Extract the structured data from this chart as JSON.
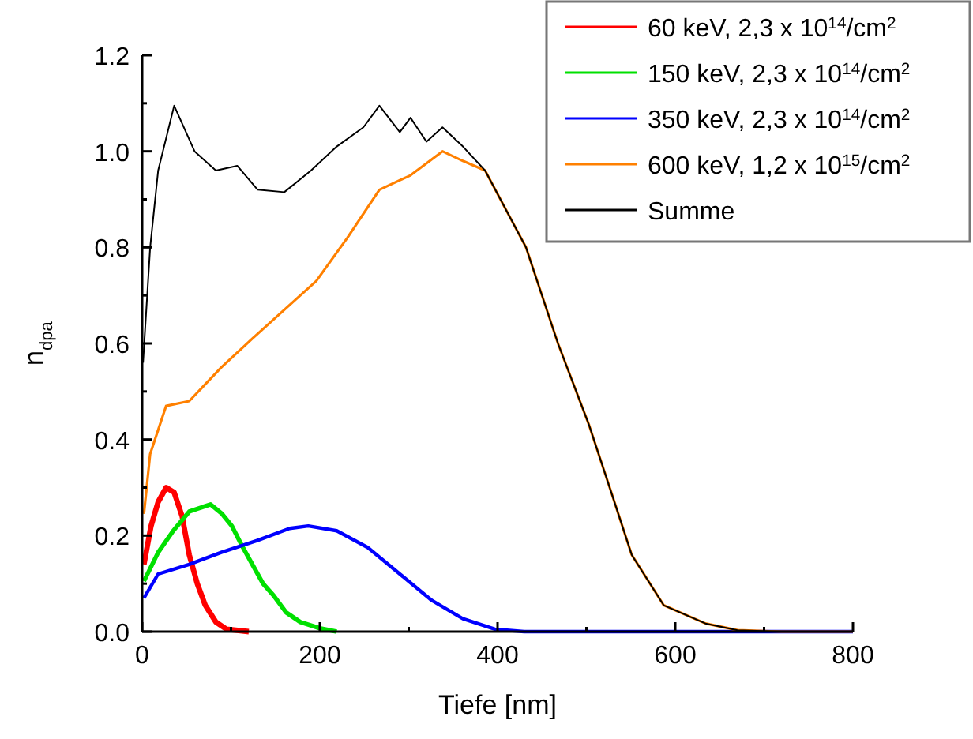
{
  "chart_data": {
    "type": "line",
    "xlabel": "Tiefe [nm]",
    "ylabel": "n$_{dpa}$",
    "xlim": [
      0,
      800
    ],
    "ylim": [
      0,
      1.2
    ],
    "xticks": [
      0,
      {
        "value": 100,
        "label": null
      },
      200,
      {
        "value": 300,
        "label": null
      },
      400,
      {
        "value": 500,
        "label": null
      },
      600,
      {
        "value": 700,
        "label": null
      },
      800
    ],
    "yticks": [
      {
        "value": 0,
        "label": "0.0"
      },
      {
        "value": 0.1,
        "label": null
      },
      0.2,
      {
        "value": 0.3,
        "label": null
      },
      0.4,
      {
        "value": 0.5,
        "label": null
      },
      0.6,
      {
        "value": 0.7,
        "label": null
      },
      0.8,
      {
        "value": 0.9,
        "label": null
      },
      {
        "value": 1,
        "label": "1.0"
      },
      {
        "value": 1.1,
        "label": null
      },
      1.2
    ],
    "grid": false,
    "legend": "top right",
    "marker": "none",
    "line_style": "solid",
    "series": [
      {
        "name": "60 keV, 2,3 x 10$^{14}$/cm$^{2}$",
        "color": "#ff0000",
        "x": [
          2,
          10,
          18,
          27,
          36,
          45,
          53,
          62,
          71,
          83,
          95,
          120
        ],
        "values": [
          0.14,
          0.22,
          0.27,
          0.3,
          0.29,
          0.24,
          0.16,
          0.1,
          0.055,
          0.02,
          0.005,
          0
        ]
      },
      {
        "name": "150 keV, 2,3 x 10$^{14}$/cm$^{2}$",
        "color": "#00e000",
        "x": [
          2,
          18,
          35,
          53,
          77,
          90,
          101,
          112,
          124,
          136,
          148,
          162,
          178,
          200,
          219
        ],
        "values": [
          0.105,
          0.165,
          0.21,
          0.25,
          0.265,
          0.245,
          0.22,
          0.18,
          0.14,
          0.1,
          0.075,
          0.04,
          0.02,
          0.007,
          0
        ]
      },
      {
        "name": "350 keV, 2,3 x 10$^{14}$/cm$^{2}$",
        "color": "#0000ff",
        "x": [
          2,
          18,
          53,
          89,
          130,
          166,
          187,
          219,
          254,
          290,
          326,
          361,
          397,
          430,
          800
        ],
        "values": [
          0.07,
          0.12,
          0.14,
          0.165,
          0.19,
          0.215,
          0.22,
          0.21,
          0.175,
          0.12,
          0.065,
          0.027,
          0.005,
          0,
          0
        ]
      },
      {
        "name": "600 keV, 1,2 x 10$^{15}$/cm$^{2}$",
        "color": "#ff8000",
        "x": [
          2,
          9,
          27,
          53,
          89,
          124,
          160,
          196,
          231,
          267,
          302,
          338,
          361,
          386,
          432,
          468,
          503,
          528,
          551,
          587,
          634,
          670,
          720,
          800
        ],
        "values": [
          0.245,
          0.37,
          0.47,
          0.48,
          0.55,
          0.61,
          0.67,
          0.73,
          0.82,
          0.92,
          0.95,
          1.0,
          0.98,
          0.96,
          0.8,
          0.6,
          0.43,
          0.29,
          0.16,
          0.055,
          0.017,
          0.003,
          0,
          0
        ]
      },
      {
        "name": "Summe",
        "color": "#000000",
        "x": [
          1,
          9,
          18,
          36,
          59,
          83,
          107,
          130,
          160,
          190,
          219,
          249,
          267,
          290,
          302,
          320,
          338,
          361,
          386,
          432,
          468,
          503,
          528,
          551,
          587,
          634,
          670,
          720,
          800
        ],
        "values": [
          0.56,
          0.8,
          0.96,
          1.095,
          1.0,
          0.96,
          0.97,
          0.92,
          0.915,
          0.96,
          1.01,
          1.05,
          1.095,
          1.04,
          1.07,
          1.02,
          1.05,
          1.01,
          0.96,
          0.8,
          0.6,
          0.43,
          0.29,
          0.16,
          0.055,
          0.017,
          0.003,
          0,
          0
        ]
      }
    ]
  }
}
